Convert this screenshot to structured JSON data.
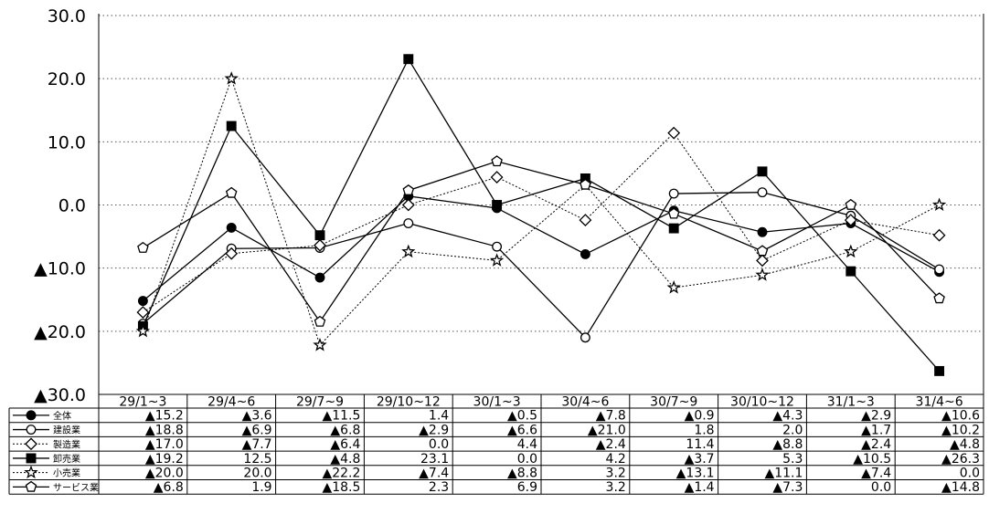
{
  "chart_data": {
    "type": "line",
    "title": "",
    "xlabel": "",
    "ylabel": "",
    "ylim": [
      -30,
      30
    ],
    "yticks": [
      30,
      20,
      10,
      0,
      -10,
      -20,
      -30
    ],
    "ytick_labels": [
      "30.0",
      "20.0",
      "10.0",
      "0.0",
      "▲10.0",
      "▲20.0",
      "▲30.0"
    ],
    "grid": "horizontal-dotted",
    "legend": "table-left",
    "categories": [
      "29/1~3",
      "29/4~6",
      "29/7~9",
      "29/10~12",
      "30/1~3",
      "30/4~6",
      "30/7~9",
      "30/10~12",
      "31/1~3",
      "31/4~6"
    ],
    "series": [
      {
        "name": "全体",
        "marker": "filled-circle",
        "line": "solid",
        "values": [
          -15.2,
          -3.6,
          -11.5,
          1.4,
          -0.5,
          -7.8,
          -0.9,
          -4.3,
          -2.9,
          -10.6
        ],
        "labels": [
          "▲15.2",
          "▲3.6",
          "▲11.5",
          "1.4",
          "▲0.5",
          "▲7.8",
          "▲0.9",
          "▲4.3",
          "▲2.9",
          "▲10.6"
        ]
      },
      {
        "name": "建設業",
        "marker": "open-circle",
        "line": "solid",
        "values": [
          -18.8,
          -6.9,
          -6.8,
          -2.9,
          -6.6,
          -21.0,
          1.8,
          2.0,
          -1.7,
          -10.2
        ],
        "labels": [
          "▲18.8",
          "▲6.9",
          "▲6.8",
          "▲2.9",
          "▲6.6",
          "▲21.0",
          "1.8",
          "2.0",
          "▲1.7",
          "▲10.2"
        ]
      },
      {
        "name": "製造業",
        "marker": "open-diamond",
        "line": "dotted",
        "values": [
          -17.0,
          -7.7,
          -6.4,
          0.0,
          4.4,
          -2.4,
          11.4,
          -8.8,
          -2.4,
          -4.8
        ],
        "labels": [
          "▲17.0",
          "▲7.7",
          "▲6.4",
          "0.0",
          "4.4",
          "▲2.4",
          "11.4",
          "▲8.8",
          "▲2.4",
          "▲4.8"
        ]
      },
      {
        "name": "卸売業",
        "marker": "filled-square",
        "line": "solid",
        "values": [
          -19.2,
          12.5,
          -4.8,
          23.1,
          0.0,
          4.2,
          -3.7,
          5.3,
          -10.5,
          -26.3
        ],
        "labels": [
          "▲19.2",
          "12.5",
          "▲4.8",
          "23.1",
          "0.0",
          "4.2",
          "▲3.7",
          "5.3",
          "▲10.5",
          "▲26.3"
        ]
      },
      {
        "name": "小売業",
        "marker": "open-star",
        "line": "dotted",
        "values": [
          -20.0,
          20.0,
          -22.2,
          -7.4,
          -8.8,
          3.2,
          -13.1,
          -11.1,
          -7.4,
          0.0
        ],
        "labels": [
          "▲20.0",
          "20.0",
          "▲22.2",
          "▲7.4",
          "▲8.8",
          "3.2",
          "▲13.1",
          "▲11.1",
          "▲7.4",
          "0.0"
        ]
      },
      {
        "name": "サービス業",
        "marker": "open-pentagon",
        "line": "solid",
        "values": [
          -6.8,
          1.9,
          -18.5,
          2.3,
          6.9,
          3.2,
          -1.4,
          -7.3,
          0.0,
          -14.8
        ],
        "labels": [
          "▲6.8",
          "1.9",
          "▲18.5",
          "2.3",
          "6.9",
          "3.2",
          "▲1.4",
          "▲7.3",
          "0.0",
          "▲14.8"
        ]
      }
    ]
  }
}
